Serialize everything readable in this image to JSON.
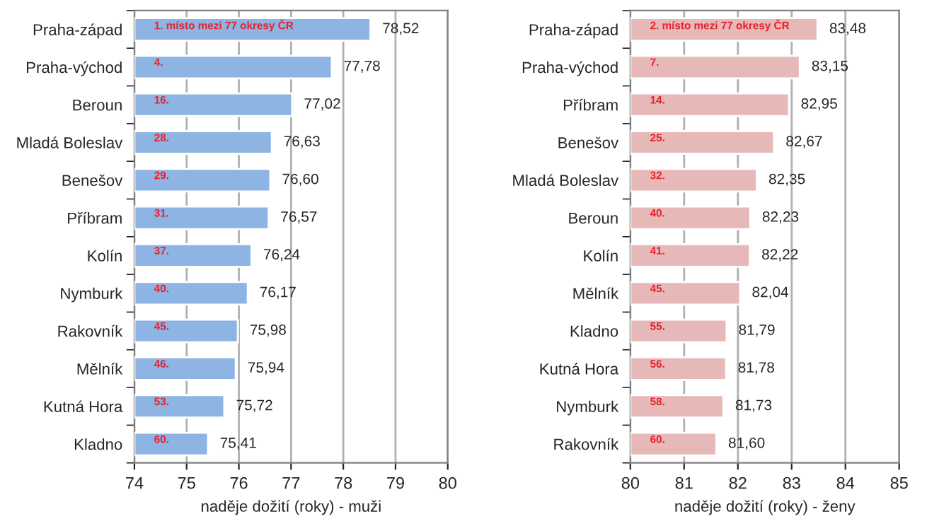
{
  "chart_data": [
    {
      "type": "bar",
      "orientation": "horizontal",
      "xlabel": "naděje dožití (roky) - muži",
      "categories": [
        "Praha-západ",
        "Praha-východ",
        "Beroun",
        "Mladá Boleslav",
        "Benešov",
        "Příbram",
        "Kolín",
        "Nymburk",
        "Rakovník",
        "Mělník",
        "Kutná Hora",
        "Kladno"
      ],
      "values": [
        78.52,
        77.78,
        77.02,
        76.63,
        76.6,
        76.57,
        76.24,
        76.17,
        75.98,
        75.94,
        75.72,
        75.41
      ],
      "value_labels": [
        "78,52",
        "77,78",
        "77,02",
        "76,63",
        "76,60",
        "76,57",
        "76,24",
        "76,17",
        "75,98",
        "75,94",
        "75,72",
        "75,41"
      ],
      "color": "#8db4e2",
      "xlim": [
        74,
        80
      ],
      "xticks": [
        74,
        75,
        76,
        77,
        78,
        79,
        80
      ],
      "grid": "x",
      "annotations": [
        {
          "text": "1. místo mezi 77 okresy ČR",
          "y": "Praha-západ"
        },
        {
          "text": "4.",
          "y": "Praha-východ"
        },
        {
          "text": "16.",
          "y": "Beroun"
        },
        {
          "text": "28.",
          "y": "Mladá Boleslav"
        },
        {
          "text": "29.",
          "y": "Benešov"
        },
        {
          "text": "31.",
          "y": "Příbram"
        },
        {
          "text": "37.",
          "y": "Kolín"
        },
        {
          "text": "40.",
          "y": "Nymburk"
        },
        {
          "text": "45.",
          "y": "Rakovník"
        },
        {
          "text": "46.",
          "y": "Mělník"
        },
        {
          "text": "53.",
          "y": "Kutná Hora"
        },
        {
          "text": "60.",
          "y": "Kladno"
        }
      ]
    },
    {
      "type": "bar",
      "orientation": "horizontal",
      "xlabel": "naděje dožití (roky) - ženy",
      "categories": [
        "Praha-západ",
        "Praha-východ",
        "Příbram",
        "Benešov",
        "Mladá Boleslav",
        "Beroun",
        "Kolín",
        "Mělník",
        "Kladno",
        "Kutná Hora",
        "Nymburk",
        "Rakovník"
      ],
      "values": [
        83.48,
        83.15,
        82.95,
        82.67,
        82.35,
        82.23,
        82.22,
        82.04,
        81.79,
        81.78,
        81.73,
        81.6
      ],
      "value_labels": [
        "83,48",
        "83,15",
        "82,95",
        "82,67",
        "82,35",
        "82,23",
        "82,22",
        "82,04",
        "81,79",
        "81,78",
        "81,73",
        "81,60"
      ],
      "color": "#e6b9b8",
      "xlim": [
        80,
        85
      ],
      "xticks": [
        80,
        81,
        82,
        83,
        84,
        85
      ],
      "grid": "x",
      "annotations": [
        {
          "text": "2. místo mezi 77 okresy ČR",
          "y": "Praha-západ"
        },
        {
          "text": "7.",
          "y": "Praha-východ"
        },
        {
          "text": "14.",
          "y": "Příbram"
        },
        {
          "text": "25.",
          "y": "Benešov"
        },
        {
          "text": "32.",
          "y": "Mladá Boleslav"
        },
        {
          "text": "40.",
          "y": "Beroun"
        },
        {
          "text": "41.",
          "y": "Kolín"
        },
        {
          "text": "45.",
          "y": "Mělník"
        },
        {
          "text": "55.",
          "y": "Kladno"
        },
        {
          "text": "56.",
          "y": "Kutná Hora"
        },
        {
          "text": "58.",
          "y": "Nymburk"
        },
        {
          "text": "60.",
          "y": "Rakovník"
        }
      ]
    }
  ]
}
